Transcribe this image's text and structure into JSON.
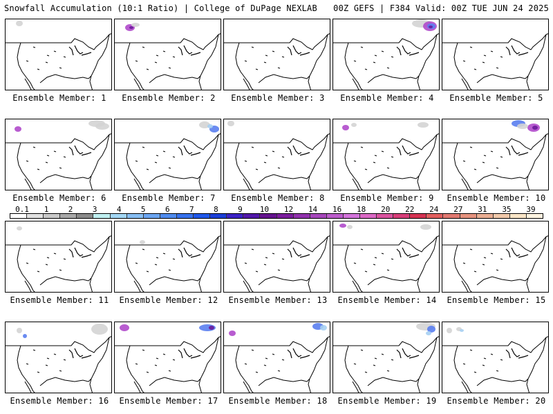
{
  "header": {
    "left": "Snowfall Accumulation (10:1 Ratio) | College of DuPage NEXLAB",
    "right": "00Z GEFS | F384 Valid: 00Z TUE JUN 24 2025"
  },
  "legend": {
    "ticks": [
      "0.1",
      "1",
      "2",
      "3",
      "4",
      "5",
      "6",
      "7",
      "8",
      "9",
      "10",
      "12",
      "14",
      "16",
      "18",
      "20",
      "22",
      "24",
      "27",
      "31",
      "35",
      "39"
    ],
    "colors": [
      "#ffffff",
      "#e0e0e0",
      "#c8c8c8",
      "#a8a8a8",
      "#8a8a8a",
      "#bfeff0",
      "#a2d6f4",
      "#86bdf2",
      "#6aa4f0",
      "#4f8bee",
      "#3570ec",
      "#1e56e8",
      "#1a3ed6",
      "#3a20c4",
      "#5016a8",
      "#64128e",
      "#7a1b9c",
      "#9030ac",
      "#a646bb",
      "#bc5ccb",
      "#d273da",
      "#da68c4",
      "#d9529e",
      "#d63d78",
      "#d43252",
      "#e05e5e",
      "#e07870",
      "#e4927e",
      "#e8ad92",
      "#f0c8aa",
      "#f8e4c6",
      "#fdf3e0"
    ]
  },
  "members": [
    {
      "label": "Ensemble Member: 1"
    },
    {
      "label": "Ensemble Member: 2"
    },
    {
      "label": "Ensemble Member: 3"
    },
    {
      "label": "Ensemble Member: 4"
    },
    {
      "label": "Ensemble Member: 5"
    },
    {
      "label": "Ensemble Member: 6"
    },
    {
      "label": "Ensemble Member: 7"
    },
    {
      "label": "Ensemble Member: 8"
    },
    {
      "label": "Ensemble Member: 9"
    },
    {
      "label": "Ensemble Member: 10"
    },
    {
      "label": "Ensemble Member: 11"
    },
    {
      "label": "Ensemble Member: 12"
    },
    {
      "label": "Ensemble Member: 13"
    },
    {
      "label": "Ensemble Member: 14"
    },
    {
      "label": "Ensemble Member: 15"
    },
    {
      "label": "Ensemble Member: 16"
    },
    {
      "label": "Ensemble Member: 17"
    },
    {
      "label": "Ensemble Member: 18"
    },
    {
      "label": "Ensemble Member: 19"
    },
    {
      "label": "Ensemble Member: 20"
    }
  ],
  "snow_colors": {
    "light": "#d4d4d4",
    "medium": "#a6cff2",
    "heavy": "#5a7ef0",
    "extreme": "#b04acb",
    "deep": "#6a1a9a"
  }
}
